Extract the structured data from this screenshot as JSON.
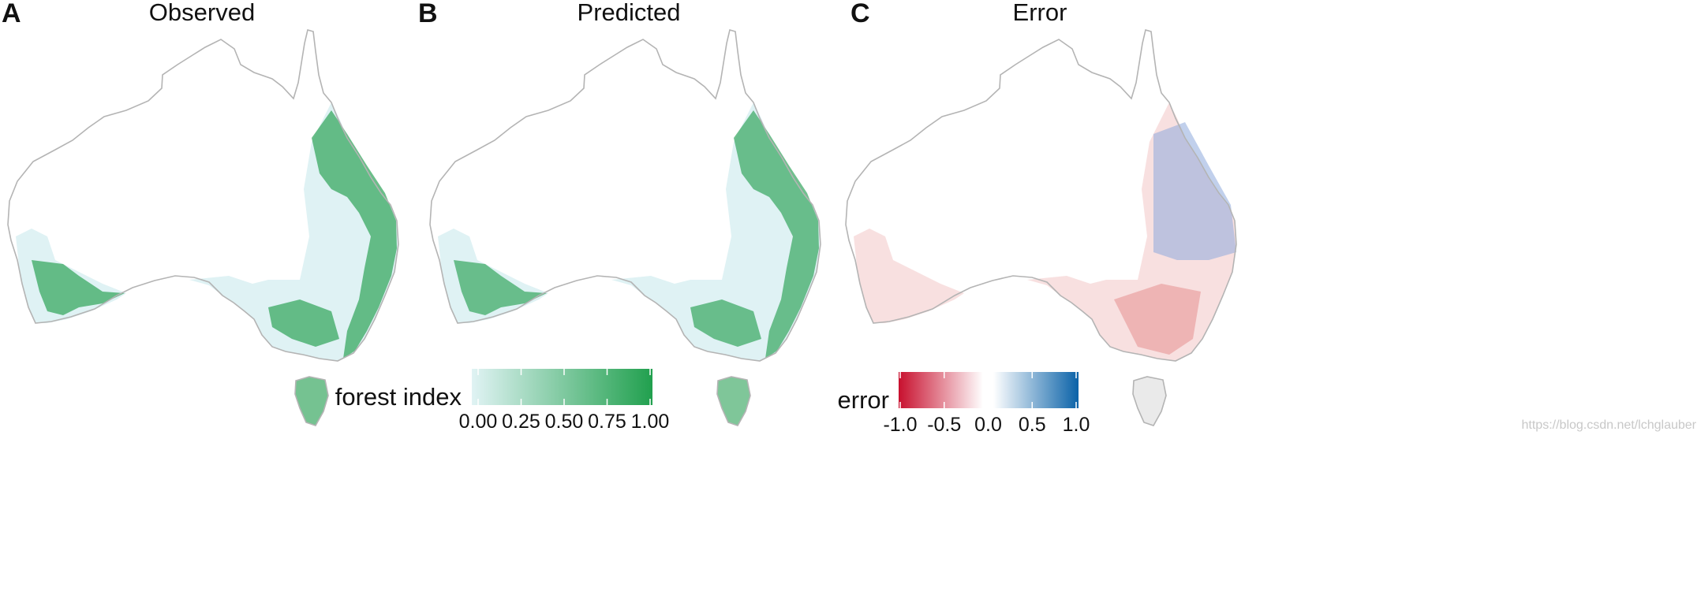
{
  "panels": [
    {
      "letter": "A",
      "title": "Observed",
      "variable": "forest index"
    },
    {
      "letter": "B",
      "title": "Predicted",
      "variable": "forest index"
    },
    {
      "letter": "C",
      "title": "Error",
      "variable": "error"
    }
  ],
  "legend_forest": {
    "title": "forest index",
    "ticks": [
      "0.00",
      "0.25",
      "0.50",
      "0.75",
      "1.00"
    ],
    "tick_values": [
      0,
      0.25,
      0.5,
      0.75,
      1.0
    ],
    "range": [
      0,
      1
    ],
    "color_low": "#e0f3f4",
    "color_high": "#21a04e"
  },
  "legend_error": {
    "title": "error",
    "ticks": [
      "-1.0",
      "-0.5",
      "0.0",
      "0.5",
      "1.0"
    ],
    "tick_values": [
      -1.0,
      -0.5,
      0.0,
      0.5,
      1.0
    ],
    "range": [
      -1,
      1
    ],
    "color_low": "#c8102e",
    "color_mid": "#ffffff",
    "color_high": "#0a62a8"
  },
  "colors": {
    "coastline": "#b4b4b4",
    "forest_low": "#dff2f4",
    "forest_high": "#2a9e55",
    "error_neg": "#e06a6a",
    "error_pos": "#6d8fcc"
  },
  "watermark": "https://blog.csdn.net/lchglauber"
}
